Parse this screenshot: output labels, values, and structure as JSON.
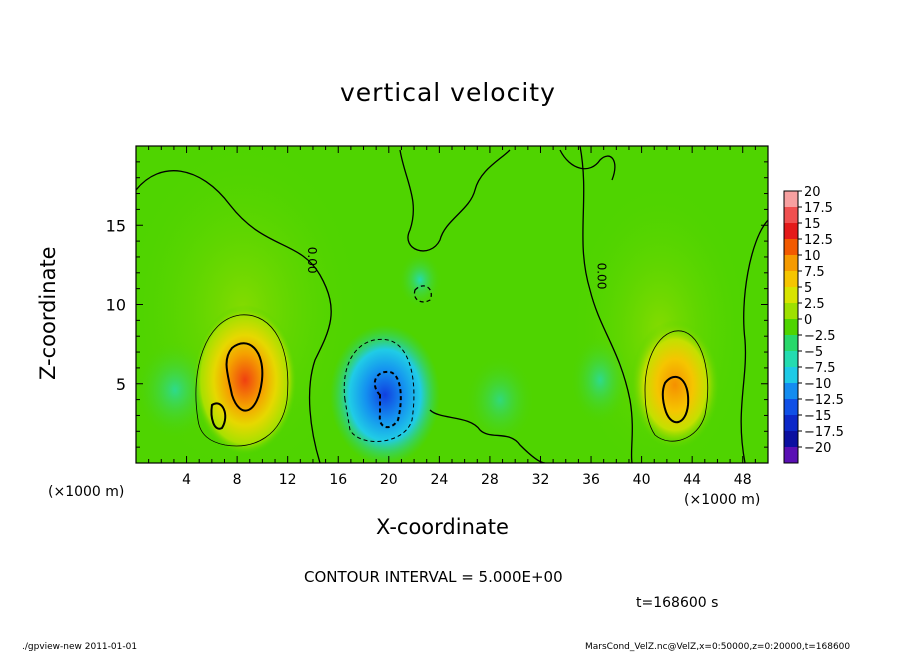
{
  "chart_data": {
    "type": "heatmap",
    "title": "vertical velocity",
    "xlabel": "X-coordinate",
    "ylabel": "Z-coordinate",
    "xlim": [
      0,
      50
    ],
    "ylim": [
      0,
      20
    ],
    "x_ticks": [
      4,
      8,
      12,
      16,
      20,
      24,
      28,
      32,
      36,
      40,
      44,
      48
    ],
    "y_ticks": [
      5,
      10,
      15
    ],
    "x_unit": "(×1000 m)",
    "colorbar": {
      "levels": [
        20,
        17.5,
        15,
        12.5,
        10,
        7.5,
        5,
        2.5,
        0,
        -2.5,
        -5,
        -7.5,
        -10,
        -12.5,
        -15,
        -17.5,
        -20
      ],
      "labels": [
        "20",
        "17.5",
        "15",
        "12.5",
        "10",
        "7.5",
        "5",
        "2.5",
        "0",
        "−2.5",
        "−5",
        "−7.5",
        "−10",
        "−12.5",
        "−15",
        "−17.5",
        "−20"
      ],
      "colors": [
        "#f7a0a0",
        "#f05050",
        "#e41a1a",
        "#f25a00",
        "#f59a00",
        "#f5c500",
        "#d8e400",
        "#9ee000",
        "#4fd400",
        "#28d86a",
        "#24dcb0",
        "#1ecae6",
        "#148cf0",
        "#1050e6",
        "#0c28c8",
        "#0c10a0",
        "#5a10b4"
      ]
    },
    "contour_labels": [
      "0.00",
      "0.00"
    ],
    "features": [
      {
        "name": "updraft-left",
        "x": 8.8,
        "z": 5.2,
        "value": 15
      },
      {
        "name": "downdraft-center",
        "x": 19.5,
        "z": 3.5,
        "value": -12.5
      },
      {
        "name": "updraft-right",
        "x": 42.5,
        "z": 4.0,
        "value": 10
      }
    ],
    "contour_interval": "CONTOUR INTERVAL = 5.000E+00",
    "time": "t=168600 s"
  },
  "footer": {
    "left": "./gpview-new   2011-01-01",
    "right": "MarsCond_VelZ.nc@VelZ,x=0:50000,z=0:20000,t=168600"
  }
}
